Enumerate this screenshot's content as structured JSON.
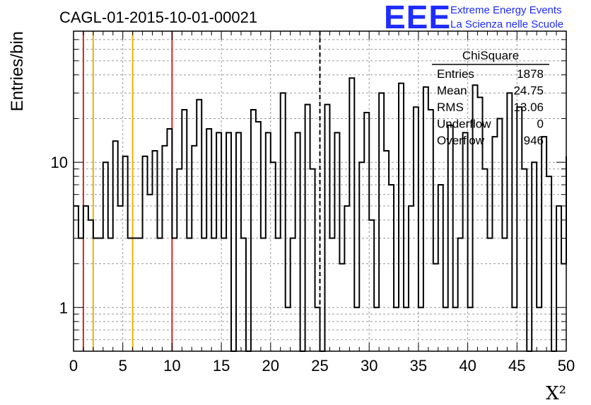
{
  "chart_data": {
    "type": "histogram",
    "title": "CAGL-01-2015-10-01-00021",
    "xlabel": "X²",
    "ylabel": "Entries/bin",
    "xlim": [
      0,
      50
    ],
    "ylim": [
      0.5,
      80
    ],
    "log_y": true,
    "grid": true,
    "bin_width": 0.5,
    "x_ticks": [
      "0",
      "5",
      "10",
      "15",
      "20",
      "25",
      "30",
      "35",
      "40",
      "45",
      "50"
    ],
    "y_ticks": [
      "1",
      "10"
    ],
    "values": [
      5,
      3,
      5,
      4,
      3,
      3,
      10,
      3,
      14,
      5,
      11,
      3,
      3,
      3,
      11,
      6,
      12,
      3,
      13,
      17,
      3,
      9,
      23,
      3,
      13,
      27,
      3,
      17,
      3,
      16,
      3,
      16,
      0,
      16,
      3,
      0,
      23,
      19,
      3,
      16,
      10,
      3,
      30,
      1,
      3,
      16,
      0,
      25,
      9,
      1,
      0,
      25,
      3,
      16,
      2,
      5,
      38,
      1,
      10,
      22,
      4,
      1,
      30,
      12,
      7,
      1,
      35,
      1,
      5,
      24,
      1,
      33,
      23,
      2,
      7,
      1,
      18,
      1,
      3,
      16,
      1,
      34,
      28,
      9,
      3,
      15,
      20,
      3,
      30,
      1,
      24,
      9,
      0,
      10,
      1,
      15,
      8,
      0,
      5,
      2,
      11
    ],
    "lines": [
      {
        "x": 1,
        "color": "#d62728",
        "style": "solid"
      },
      {
        "x": 2,
        "color": "#f0b400",
        "style": "solid"
      },
      {
        "x": 6,
        "color": "#f0b400",
        "style": "solid"
      },
      {
        "x": 10,
        "color": "#d62728",
        "style": "solid"
      },
      {
        "x": 25,
        "color": "#000000",
        "style": "dashed"
      }
    ],
    "stats": {
      "title": "ChiSquare",
      "rows": [
        {
          "label": "Entries",
          "value": "1878"
        },
        {
          "label": "Mean",
          "value": "24.75"
        },
        {
          "label": "RMS",
          "value": "13.06"
        },
        {
          "label": "Underflow",
          "value": "0"
        },
        {
          "label": "Overflow",
          "value": "946"
        }
      ]
    }
  },
  "logo": {
    "mark": "EEE",
    "line1": "Extreme Energy Events",
    "line2": "La Scienza nelle Scuole",
    "color": "#1f2cff"
  }
}
